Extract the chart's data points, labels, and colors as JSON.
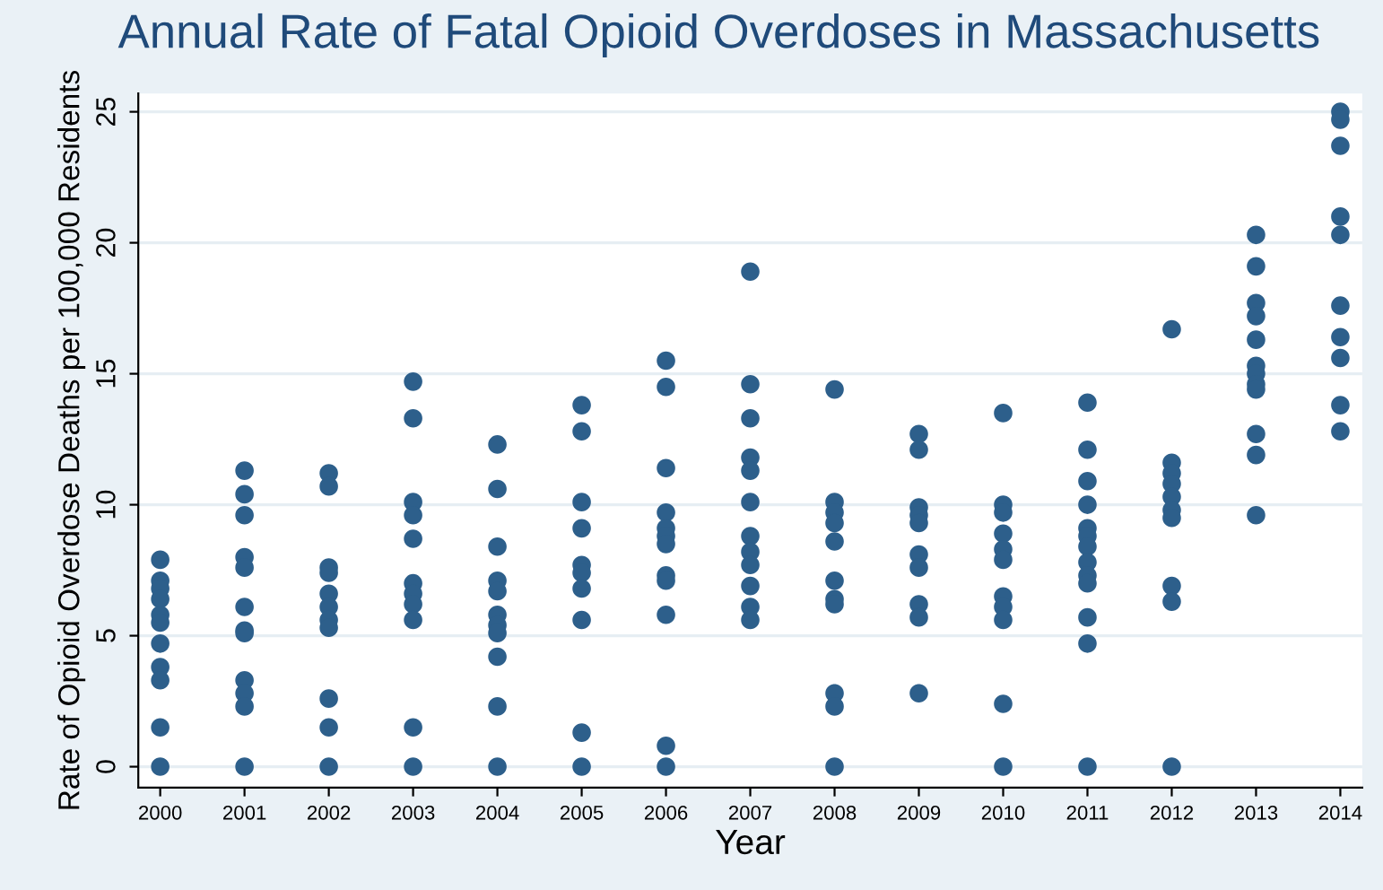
{
  "chart_data": {
    "type": "scatter",
    "title": "Annual Rate of Fatal Opioid Overdoses in Massachusetts",
    "xlabel": "Year",
    "ylabel": "Rate of Opioid Overdose Deaths per 100,000 Residents",
    "series": [
      {
        "color": "#2d5f8b",
        "x": [
          2000,
          2000,
          2000,
          2000,
          2000,
          2000,
          2000,
          2000,
          2000,
          2000,
          2000,
          2001,
          2001,
          2001,
          2001,
          2001,
          2001,
          2001,
          2001,
          2001,
          2001,
          2001,
          2001,
          2002,
          2002,
          2002,
          2002,
          2002,
          2002,
          2002,
          2002,
          2002,
          2002,
          2002,
          2003,
          2003,
          2003,
          2003,
          2003,
          2003,
          2003,
          2003,
          2003,
          2003,
          2003,
          2004,
          2004,
          2004,
          2004,
          2004,
          2004,
          2004,
          2004,
          2004,
          2004,
          2004,
          2005,
          2005,
          2005,
          2005,
          2005,
          2005,
          2005,
          2005,
          2005,
          2005,
          2006,
          2006,
          2006,
          2006,
          2006,
          2006,
          2006,
          2006,
          2006,
          2006,
          2006,
          2006,
          2007,
          2007,
          2007,
          2007,
          2007,
          2007,
          2007,
          2007,
          2007,
          2007,
          2007,
          2007,
          2008,
          2008,
          2008,
          2008,
          2008,
          2008,
          2008,
          2008,
          2008,
          2008,
          2008,
          2009,
          2009,
          2009,
          2009,
          2009,
          2009,
          2009,
          2009,
          2009,
          2009,
          2010,
          2010,
          2010,
          2010,
          2010,
          2010,
          2010,
          2010,
          2010,
          2010,
          2010,
          2011,
          2011,
          2011,
          2011,
          2011,
          2011,
          2011,
          2011,
          2011,
          2011,
          2011,
          2011,
          2011,
          2012,
          2012,
          2012,
          2012,
          2012,
          2012,
          2012,
          2012,
          2012,
          2012,
          2013,
          2013,
          2013,
          2013,
          2013,
          2013,
          2013,
          2013,
          2013,
          2013,
          2013,
          2013,
          2014,
          2014,
          2014,
          2014,
          2014,
          2014,
          2014,
          2014,
          2014,
          2014
        ],
        "values": [
          7.9,
          7.1,
          6.8,
          6.4,
          5.8,
          5.5,
          4.7,
          3.8,
          3.3,
          1.5,
          0,
          11.3,
          10.4,
          9.6,
          8.0,
          7.6,
          6.1,
          5.2,
          5.1,
          3.3,
          2.8,
          2.3,
          0,
          11.2,
          10.7,
          7.6,
          7.4,
          6.6,
          6.1,
          5.6,
          5.3,
          2.6,
          1.5,
          0,
          14.7,
          13.3,
          10.1,
          9.6,
          8.7,
          7.0,
          6.6,
          6.2,
          5.6,
          1.5,
          0,
          12.3,
          10.6,
          8.4,
          7.1,
          6.7,
          5.8,
          5.4,
          5.1,
          4.2,
          2.3,
          0,
          13.8,
          12.8,
          10.1,
          9.1,
          7.7,
          7.4,
          6.8,
          5.6,
          1.3,
          0,
          15.5,
          14.5,
          11.4,
          9.7,
          9.1,
          8.8,
          8.5,
          7.3,
          7.1,
          5.8,
          0.8,
          0,
          18.9,
          14.6,
          13.3,
          11.8,
          11.3,
          10.1,
          8.8,
          8.2,
          7.7,
          6.9,
          6.1,
          5.6,
          14.4,
          10.1,
          9.7,
          9.3,
          8.6,
          7.1,
          6.4,
          6.2,
          2.8,
          2.3,
          0,
          12.7,
          12.1,
          9.9,
          9.6,
          9.3,
          8.1,
          7.6,
          6.2,
          5.7,
          2.8,
          13.5,
          10.0,
          9.7,
          8.9,
          8.3,
          7.9,
          6.5,
          6.1,
          5.6,
          2.4,
          0,
          13.9,
          12.1,
          10.9,
          10.0,
          9.1,
          8.8,
          8.4,
          7.8,
          7.3,
          7.0,
          5.7,
          4.7,
          0,
          16.7,
          11.6,
          11.2,
          10.8,
          10.3,
          9.8,
          9.5,
          6.9,
          6.3,
          0,
          20.3,
          19.1,
          17.7,
          17.2,
          16.3,
          15.3,
          15.0,
          14.6,
          14.4,
          12.7,
          11.9,
          9.6,
          25.0,
          24.7,
          23.7,
          21.0,
          20.3,
          17.6,
          16.4,
          15.6,
          13.8,
          12.8
        ]
      }
    ],
    "xlim": [
      1999.74,
      2014.26
    ],
    "xticks": [
      2000,
      2001,
      2002,
      2003,
      2004,
      2005,
      2006,
      2007,
      2008,
      2009,
      2010,
      2011,
      2012,
      2013,
      2014
    ],
    "ylim": [
      -0.8,
      25.7
    ],
    "yticks": [
      0,
      5,
      10,
      15,
      20,
      25
    ],
    "grid": "y",
    "marker": "circle"
  }
}
